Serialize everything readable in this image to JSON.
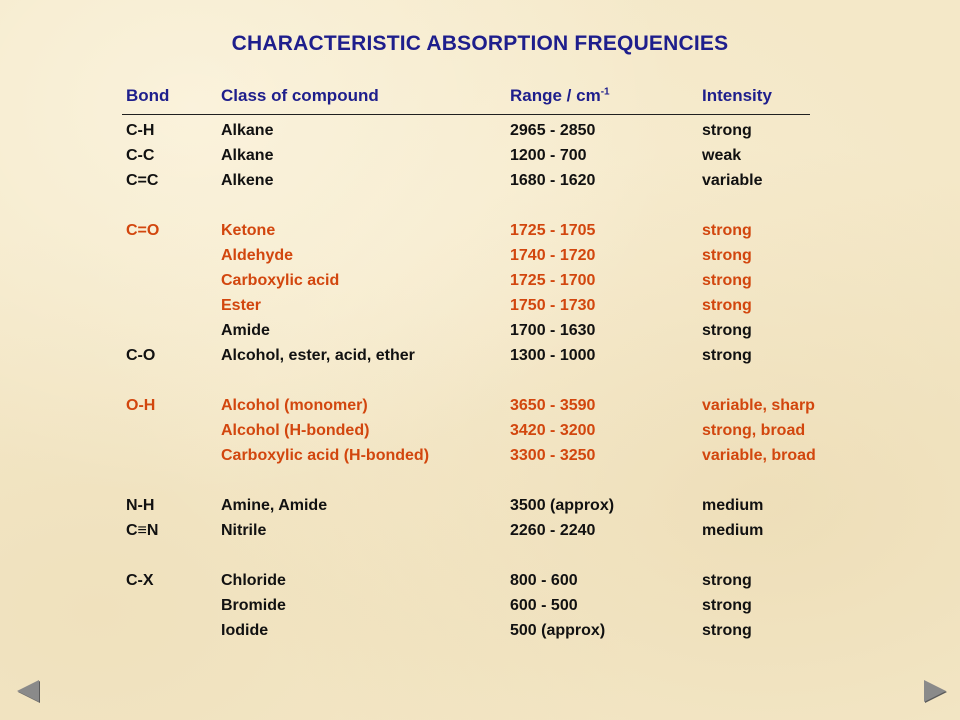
{
  "title": "CHARACTERISTIC ABSORPTION FREQUENCIES",
  "header": {
    "bond": "Bond",
    "class": "Class of compound",
    "range": "Range / cm",
    "range_sup": "-1",
    "intensity": "Intensity"
  },
  "colors": {
    "title": "#1e1e8c",
    "black_rows": "#111111",
    "orange_rows": "#d2460e"
  },
  "rows": [
    {
      "bond": "C-H",
      "class": "Alkane",
      "range": "2965 - 2850",
      "intensity": "strong",
      "color": "black"
    },
    {
      "bond": "C-C",
      "class": "Alkane",
      "range": "1200 - 700",
      "intensity": "weak",
      "color": "black"
    },
    {
      "bond": "C=C",
      "class": "Alkene",
      "range": "1680 - 1620",
      "intensity": "variable",
      "color": "black"
    },
    {
      "gap": true
    },
    {
      "bond": "C=O",
      "class": "Ketone",
      "range": "1725 - 1705",
      "intensity": "strong",
      "color": "orange"
    },
    {
      "bond": "",
      "class": "Aldehyde",
      "range": "1740 - 1720",
      "intensity": "strong",
      "color": "orange"
    },
    {
      "bond": "",
      "class": "Carboxylic acid",
      "range": "1725 - 1700",
      "intensity": "strong",
      "color": "orange"
    },
    {
      "bond": "",
      "class": "Ester",
      "range": "1750 - 1730",
      "intensity": "strong",
      "color": "orange"
    },
    {
      "bond": "",
      "class": "Amide",
      "range": "1700 - 1630",
      "intensity": "strong",
      "color": "black"
    },
    {
      "bond": "C-O",
      "class": "Alcohol, ester, acid, ether",
      "range": "1300 - 1000",
      "intensity": "strong",
      "color": "black"
    },
    {
      "gap": true
    },
    {
      "bond": "O-H",
      "class": "Alcohol (monomer)",
      "range": "3650 - 3590",
      "intensity": "variable, sharp",
      "color": "orange"
    },
    {
      "bond": "",
      "class": "Alcohol (H-bonded)",
      "range": "3420 - 3200",
      "intensity": "strong, broad",
      "color": "orange"
    },
    {
      "bond": "",
      "class": "Carboxylic acid (H-bonded)",
      "range": "3300 - 3250",
      "intensity": "variable, broad",
      "color": "orange"
    },
    {
      "gap": true
    },
    {
      "bond": "N-H",
      "class": "Amine, Amide",
      "range": "3500 (approx)",
      "intensity": "medium",
      "color": "black"
    },
    {
      "bond": "C≡N",
      "class": "Nitrile",
      "range": "2260 - 2240",
      "intensity": "medium",
      "color": "black"
    },
    {
      "gap": true
    },
    {
      "bond": "C-X",
      "class": "Chloride",
      "range": "800 - 600",
      "intensity": "strong",
      "color": "black"
    },
    {
      "bond": "",
      "class": "Bromide",
      "range": "600 - 500",
      "intensity": "strong",
      "color": "black"
    },
    {
      "bond": "",
      "class": "Iodide",
      "range": "500 (approx)",
      "intensity": "strong",
      "color": "black"
    }
  ],
  "nav": {
    "prev_icon": "triangle-left-icon",
    "next_icon": "triangle-right-icon"
  }
}
